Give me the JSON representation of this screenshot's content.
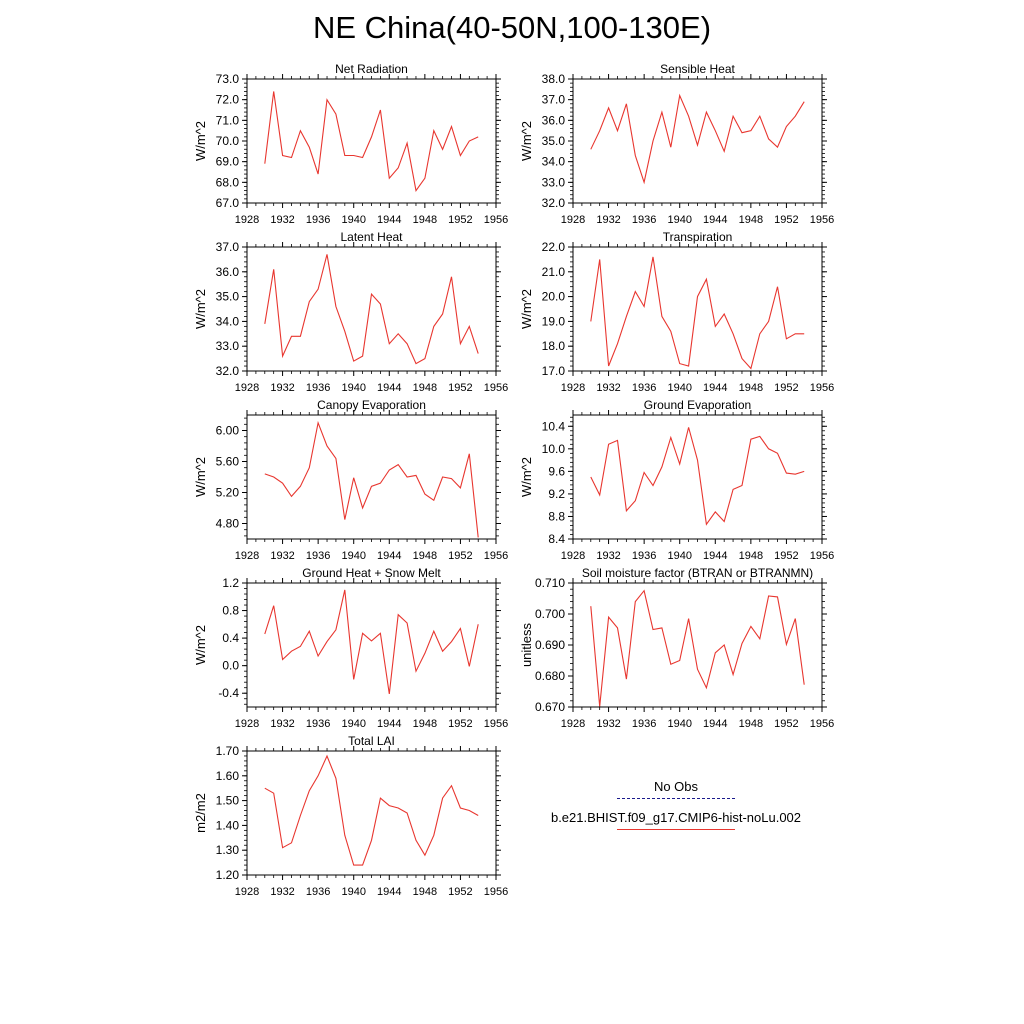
{
  "figure": {
    "title": "NE China(40-50N,100-130E)"
  },
  "legend": {
    "obs_label": "No Obs",
    "model_label": "b.e21.BHIST.f09_g17.CMIP6-hist-noLu.002",
    "obs_color": "#1a1a8c",
    "model_color": "#e8362f"
  },
  "chart_data": [
    {
      "type": "line",
      "title": "Net Radiation",
      "ylabel": "W/m^2",
      "xlim": [
        1928,
        1956
      ],
      "ylim": [
        67.0,
        73.0
      ],
      "xticks": [
        1928,
        1932,
        1936,
        1940,
        1944,
        1948,
        1952,
        1956
      ],
      "yticks": [
        67.0,
        68.0,
        69.0,
        70.0,
        71.0,
        72.0,
        73.0
      ],
      "ytick_labels": [
        "67.0",
        "68.0",
        "69.0",
        "70.0",
        "71.0",
        "72.0",
        "73.0"
      ],
      "x": [
        1930,
        1931,
        1932,
        1933,
        1934,
        1935,
        1936,
        1937,
        1938,
        1939,
        1940,
        1941,
        1942,
        1943,
        1944,
        1945,
        1946,
        1947,
        1948,
        1949,
        1950,
        1951,
        1952,
        1953,
        1954
      ],
      "series": [
        {
          "values": [
            68.9,
            72.4,
            69.3,
            69.2,
            70.5,
            69.7,
            68.4,
            72.0,
            71.3,
            69.3,
            69.3,
            69.2,
            70.2,
            71.5,
            68.2,
            68.7,
            69.9,
            67.6,
            68.2,
            70.5,
            69.6,
            70.7,
            69.3,
            70.0,
            70.2
          ]
        }
      ]
    },
    {
      "type": "line",
      "title": "Sensible Heat",
      "ylabel": "W/m^2",
      "xlim": [
        1928,
        1956
      ],
      "ylim": [
        32.0,
        38.0
      ],
      "xticks": [
        1928,
        1932,
        1936,
        1940,
        1944,
        1948,
        1952,
        1956
      ],
      "yticks": [
        32.0,
        33.0,
        34.0,
        35.0,
        36.0,
        37.0,
        38.0
      ],
      "ytick_labels": [
        "32.0",
        "33.0",
        "34.0",
        "35.0",
        "36.0",
        "37.0",
        "38.0"
      ],
      "x": [
        1930,
        1931,
        1932,
        1933,
        1934,
        1935,
        1936,
        1937,
        1938,
        1939,
        1940,
        1941,
        1942,
        1943,
        1944,
        1945,
        1946,
        1947,
        1948,
        1949,
        1950,
        1951,
        1952,
        1953,
        1954
      ],
      "series": [
        {
          "values": [
            34.6,
            35.5,
            36.6,
            35.5,
            36.8,
            34.3,
            33.0,
            35.0,
            36.4,
            34.7,
            37.2,
            36.2,
            34.8,
            36.4,
            35.5,
            34.5,
            36.2,
            35.4,
            35.5,
            36.2,
            35.1,
            34.7,
            35.7,
            36.2,
            36.9
          ]
        }
      ]
    },
    {
      "type": "line",
      "title": "Latent Heat",
      "ylabel": "W/m^2",
      "xlim": [
        1928,
        1956
      ],
      "ylim": [
        32.0,
        37.0
      ],
      "xticks": [
        1928,
        1932,
        1936,
        1940,
        1944,
        1948,
        1952,
        1956
      ],
      "yticks": [
        32.0,
        33.0,
        34.0,
        35.0,
        36.0,
        37.0
      ],
      "ytick_labels": [
        "32.0",
        "33.0",
        "34.0",
        "35.0",
        "36.0",
        "37.0"
      ],
      "x": [
        1930,
        1931,
        1932,
        1933,
        1934,
        1935,
        1936,
        1937,
        1938,
        1939,
        1940,
        1941,
        1942,
        1943,
        1944,
        1945,
        1946,
        1947,
        1948,
        1949,
        1950,
        1951,
        1952,
        1953,
        1954
      ],
      "series": [
        {
          "values": [
            33.9,
            36.1,
            32.6,
            33.4,
            33.4,
            34.8,
            35.3,
            36.7,
            34.6,
            33.6,
            32.4,
            32.6,
            35.1,
            34.7,
            33.1,
            33.5,
            33.1,
            32.3,
            32.5,
            33.8,
            34.3,
            35.8,
            33.1,
            33.8,
            32.7
          ]
        }
      ]
    },
    {
      "type": "line",
      "title": "Transpiration",
      "ylabel": "W/m^2",
      "xlim": [
        1928,
        1956
      ],
      "ylim": [
        17.0,
        22.0
      ],
      "xticks": [
        1928,
        1932,
        1936,
        1940,
        1944,
        1948,
        1952,
        1956
      ],
      "yticks": [
        17.0,
        18.0,
        19.0,
        20.0,
        21.0,
        22.0
      ],
      "ytick_labels": [
        "17.0",
        "18.0",
        "19.0",
        "20.0",
        "21.0",
        "22.0"
      ],
      "x": [
        1930,
        1931,
        1932,
        1933,
        1934,
        1935,
        1936,
        1937,
        1938,
        1939,
        1940,
        1941,
        1942,
        1943,
        1944,
        1945,
        1946,
        1947,
        1948,
        1949,
        1950,
        1951,
        1952,
        1953,
        1954
      ],
      "series": [
        {
          "values": [
            19.0,
            21.5,
            17.2,
            18.1,
            19.2,
            20.2,
            19.6,
            21.6,
            19.2,
            18.6,
            17.3,
            17.2,
            20.0,
            20.7,
            18.8,
            19.3,
            18.5,
            17.5,
            17.1,
            18.5,
            19.0,
            20.4,
            18.3,
            18.5,
            18.5
          ]
        }
      ]
    },
    {
      "type": "line",
      "title": "Canopy Evaporation",
      "ylabel": "W/m^2",
      "xlim": [
        1928,
        1956
      ],
      "ylim": [
        4.6,
        6.2
      ],
      "xticks": [
        1928,
        1932,
        1936,
        1940,
        1944,
        1948,
        1952,
        1956
      ],
      "yticks": [
        4.8,
        5.2,
        5.6,
        6.0
      ],
      "ytick_labels": [
        "4.80",
        "5.20",
        "5.60",
        "6.00"
      ],
      "x": [
        1930,
        1931,
        1932,
        1933,
        1934,
        1935,
        1936,
        1937,
        1938,
        1939,
        1940,
        1941,
        1942,
        1943,
        1944,
        1945,
        1946,
        1947,
        1948,
        1949,
        1950,
        1951,
        1952,
        1953,
        1954
      ],
      "series": [
        {
          "values": [
            5.44,
            5.4,
            5.32,
            5.15,
            5.28,
            5.52,
            6.1,
            5.8,
            5.64,
            4.85,
            5.39,
            5.0,
            5.28,
            5.32,
            5.49,
            5.56,
            5.4,
            5.42,
            5.18,
            5.1,
            5.4,
            5.38,
            5.26,
            5.7,
            4.62
          ]
        }
      ]
    },
    {
      "type": "line",
      "title": "Ground Evaporation",
      "ylabel": "W/m^2",
      "xlim": [
        1928,
        1956
      ],
      "ylim": [
        8.4,
        10.6
      ],
      "xticks": [
        1928,
        1932,
        1936,
        1940,
        1944,
        1948,
        1952,
        1956
      ],
      "yticks": [
        8.4,
        8.8,
        9.2,
        9.6,
        10.0,
        10.4
      ],
      "ytick_labels": [
        "8.4",
        "8.8",
        "9.2",
        "9.6",
        "10.0",
        "10.4"
      ],
      "x": [
        1930,
        1931,
        1932,
        1933,
        1934,
        1935,
        1936,
        1937,
        1938,
        1939,
        1940,
        1941,
        1942,
        1943,
        1944,
        1945,
        1946,
        1947,
        1948,
        1949,
        1950,
        1951,
        1952,
        1953,
        1954
      ],
      "series": [
        {
          "values": [
            9.5,
            9.18,
            10.08,
            10.15,
            8.9,
            9.08,
            9.58,
            9.35,
            9.68,
            10.2,
            9.73,
            10.38,
            9.8,
            8.66,
            8.88,
            8.71,
            9.28,
            9.35,
            10.17,
            10.22,
            10.0,
            9.92,
            9.57,
            9.55,
            9.6
          ]
        }
      ]
    },
    {
      "type": "line",
      "title": "Ground Heat + Snow Melt",
      "ylabel": "W/m^2",
      "xlim": [
        1928,
        1956
      ],
      "ylim": [
        -0.6,
        1.2
      ],
      "xticks": [
        1928,
        1932,
        1936,
        1940,
        1944,
        1948,
        1952,
        1956
      ],
      "yticks": [
        -0.4,
        0.0,
        0.4,
        0.8,
        1.2
      ],
      "ytick_labels": [
        "-0.4",
        "0.0",
        "0.4",
        "0.8",
        "1.2"
      ],
      "x": [
        1930,
        1931,
        1932,
        1933,
        1934,
        1935,
        1936,
        1937,
        1938,
        1939,
        1940,
        1941,
        1942,
        1943,
        1944,
        1945,
        1946,
        1947,
        1948,
        1949,
        1950,
        1951,
        1952,
        1953,
        1954
      ],
      "series": [
        {
          "values": [
            0.46,
            0.87,
            0.09,
            0.21,
            0.28,
            0.5,
            0.14,
            0.35,
            0.52,
            1.1,
            -0.2,
            0.47,
            0.36,
            0.47,
            -0.41,
            0.74,
            0.62,
            -0.08,
            0.18,
            0.5,
            0.21,
            0.35,
            0.54,
            -0.01,
            0.6
          ]
        }
      ]
    },
    {
      "type": "line",
      "title": "Soil moisture factor (BTRAN or BTRANMN)",
      "ylabel": "unitless",
      "xlim": [
        1928,
        1956
      ],
      "ylim": [
        0.67,
        0.71
      ],
      "xticks": [
        1928,
        1932,
        1936,
        1940,
        1944,
        1948,
        1952,
        1956
      ],
      "yticks": [
        0.67,
        0.68,
        0.69,
        0.7,
        0.71
      ],
      "ytick_labels": [
        "0.670",
        "0.680",
        "0.690",
        "0.700",
        "0.710"
      ],
      "x": [
        1930,
        1931,
        1932,
        1933,
        1934,
        1935,
        1936,
        1937,
        1938,
        1939,
        1940,
        1941,
        1942,
        1943,
        1944,
        1945,
        1946,
        1947,
        1948,
        1949,
        1950,
        1951,
        1952,
        1953,
        1954
      ],
      "series": [
        {
          "values": [
            0.7025,
            0.6702,
            0.699,
            0.6955,
            0.679,
            0.704,
            0.7075,
            0.695,
            0.6955,
            0.6838,
            0.685,
            0.6985,
            0.6822,
            0.6762,
            0.6875,
            0.69,
            0.6805,
            0.6905,
            0.696,
            0.692,
            0.7058,
            0.7055,
            0.6902,
            0.6985,
            0.6772
          ]
        }
      ]
    },
    {
      "type": "line",
      "title": "Total LAI",
      "ylabel": "m2/m2",
      "xlim": [
        1928,
        1956
      ],
      "ylim": [
        1.2,
        1.7
      ],
      "xticks": [
        1928,
        1932,
        1936,
        1940,
        1944,
        1948,
        1952,
        1956
      ],
      "yticks": [
        1.2,
        1.3,
        1.4,
        1.5,
        1.6,
        1.7
      ],
      "ytick_labels": [
        "1.20",
        "1.30",
        "1.40",
        "1.50",
        "1.60",
        "1.70"
      ],
      "x": [
        1930,
        1931,
        1932,
        1933,
        1934,
        1935,
        1936,
        1937,
        1938,
        1939,
        1940,
        1941,
        1942,
        1943,
        1944,
        1945,
        1946,
        1947,
        1948,
        1949,
        1950,
        1951,
        1952,
        1953,
        1954
      ],
      "series": [
        {
          "values": [
            1.55,
            1.53,
            1.31,
            1.33,
            1.44,
            1.54,
            1.6,
            1.68,
            1.59,
            1.36,
            1.24,
            1.24,
            1.34,
            1.51,
            1.48,
            1.47,
            1.45,
            1.34,
            1.28,
            1.36,
            1.51,
            1.56,
            1.47,
            1.46,
            1.44
          ]
        }
      ]
    }
  ]
}
